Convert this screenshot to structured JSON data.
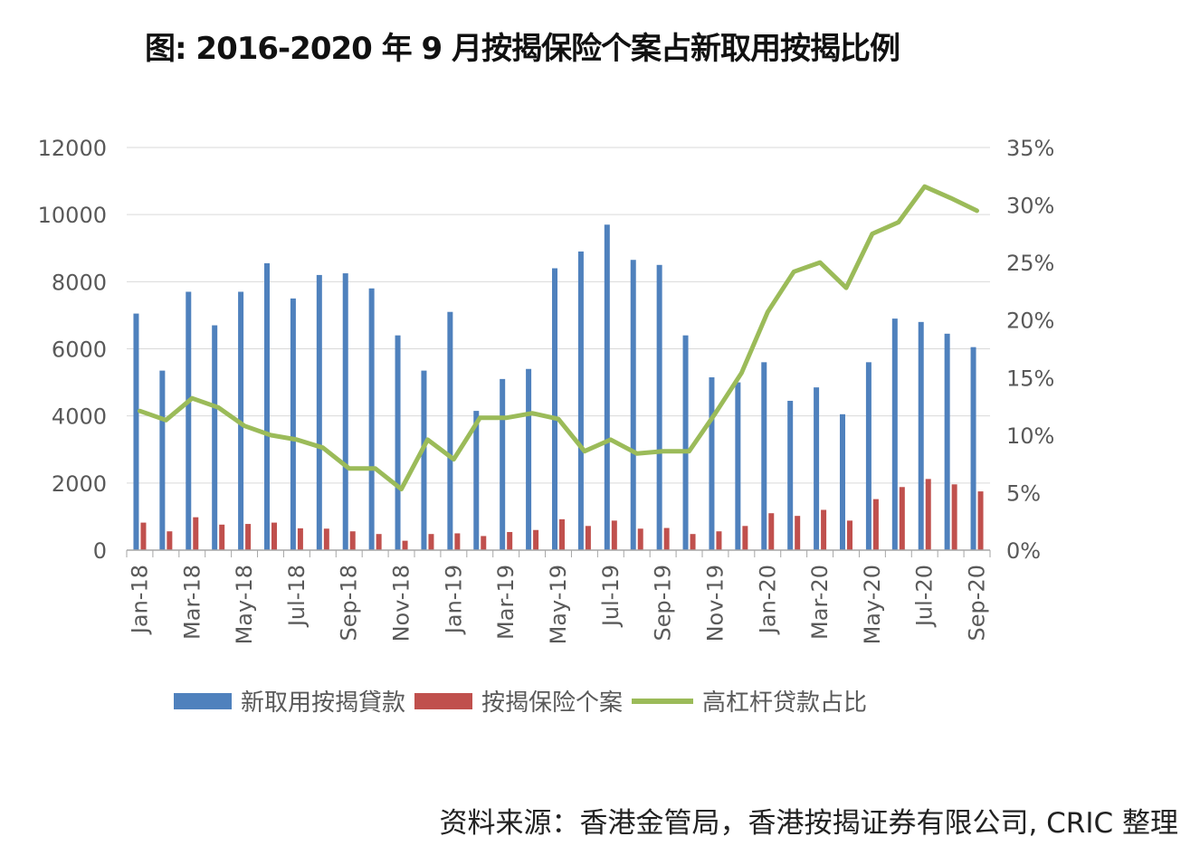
{
  "title": "图: 2016-2020 年 9 月按揭保险个案占新取用按揭比例",
  "source": "资料来源：香港金管局，香港按揭证券有限公司, CRIC 整理",
  "chart_data": {
    "type": "bar",
    "title": "图: 2016-2020 年 9 月按揭保险个案占新取用按揭比例",
    "categories": [
      "Jan-18",
      "Feb-18",
      "Mar-18",
      "Apr-18",
      "May-18",
      "Jun-18",
      "Jul-18",
      "Aug-18",
      "Sep-18",
      "Oct-18",
      "Nov-18",
      "Dec-18",
      "Jan-19",
      "Feb-19",
      "Mar-19",
      "Apr-19",
      "May-19",
      "Jun-19",
      "Jul-19",
      "Aug-19",
      "Sep-19",
      "Oct-19",
      "Nov-19",
      "Dec-19",
      "Jan-20",
      "Feb-20",
      "Mar-20",
      "Apr-20",
      "May-20",
      "Jun-20",
      "Jul-20",
      "Aug-20",
      "Sep-20"
    ],
    "x_tick_labels": [
      "Jan-18",
      "Mar-18",
      "May-18",
      "Jul-18",
      "Sep-18",
      "Nov-18",
      "Jan-19",
      "Mar-19",
      "May-19",
      "Jul-19",
      "Sep-19",
      "Nov-19",
      "Jan-20",
      "Mar-20",
      "May-20",
      "Jul-20",
      "Sep-20"
    ],
    "y_left": {
      "ylim": [
        0,
        12000
      ],
      "ticks": [
        "0",
        "2000",
        "4000",
        "6000",
        "8000",
        "10000",
        "12000"
      ]
    },
    "y_right": {
      "ylim": [
        0,
        35
      ],
      "ticks": [
        "0%",
        "5%",
        "10%",
        "15%",
        "20%",
        "25%",
        "30%",
        "35%"
      ]
    },
    "series": [
      {
        "name": "新取用按揭貸款",
        "type": "bar",
        "axis": "left",
        "color": "#4f81bd",
        "values": [
          7050,
          5350,
          7700,
          6700,
          7700,
          8550,
          7500,
          8200,
          8250,
          7800,
          6400,
          5350,
          7100,
          4150,
          5100,
          5400,
          8400,
          8900,
          9700,
          8650,
          8500,
          6400,
          5150,
          5000,
          5600,
          4450,
          4850,
          4050,
          5600,
          6900,
          6800,
          6450,
          6050
        ]
      },
      {
        "name": "按揭保险个案",
        "type": "bar",
        "axis": "right_dummy",
        "color": "#c0504d",
        "values": [
          820,
          560,
          980,
          760,
          780,
          820,
          650,
          640,
          560,
          480,
          280,
          480,
          500,
          420,
          540,
          600,
          920,
          720,
          880,
          640,
          660,
          480,
          560,
          720,
          1100,
          1020,
          1200,
          880,
          1520,
          1880,
          2120,
          1960,
          1750
        ]
      },
      {
        "name": "高杠杆贷款占比",
        "type": "line",
        "axis": "right",
        "color": "#9bbb59",
        "values": [
          12.1,
          11.3,
          13.2,
          12.4,
          10.8,
          10.0,
          9.6,
          8.9,
          7.1,
          7.1,
          5.3,
          9.6,
          7.9,
          11.5,
          11.5,
          11.9,
          11.4,
          8.6,
          9.6,
          8.4,
          8.6,
          8.6,
          11.9,
          15.4,
          20.7,
          24.2,
          25.0,
          22.8,
          27.5,
          28.5,
          31.6,
          30.6,
          29.5
        ]
      }
    ],
    "legend": [
      "新取用按揭貸款",
      "按揭保险个案",
      "高杠杆贷款占比"
    ],
    "legend_position": "bottom",
    "grid": true
  }
}
